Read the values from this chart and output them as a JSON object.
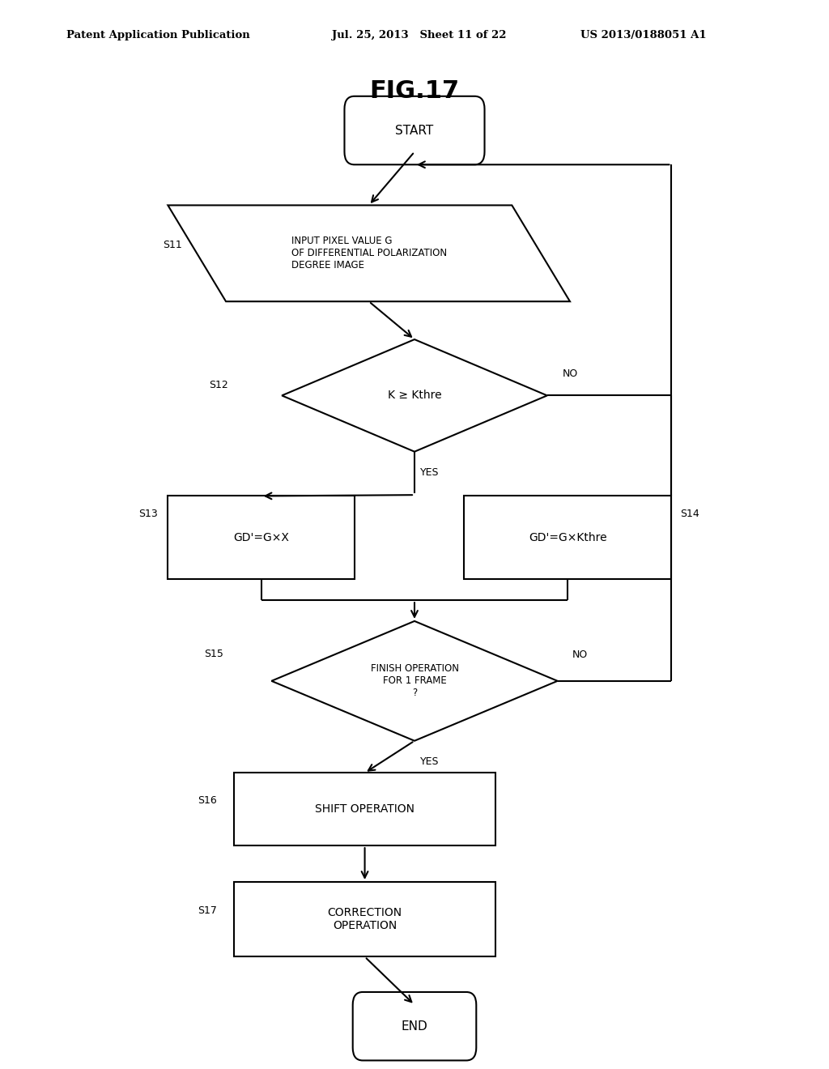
{
  "title": "FIG.17",
  "header_left": "Patent Application Publication",
  "header_center": "Jul. 25, 2013   Sheet 11 of 22",
  "header_right": "US 2013/0188051 A1",
  "bg_color": "#ffffff",
  "line_color": "#000000",
  "start_label": "START",
  "end_label": "END",
  "s11_label": "INPUT PIXEL VALUE G\nOF DIFFERENTIAL POLARIZATION\nDEGREE IMAGE",
  "s12_label": "K ≥ Kthre",
  "s13_label": "GD'=G×X",
  "s14_label": "GD'=G×Kthre",
  "s15_label": "FINISH OPERATION\nFOR 1 FRAME\n?",
  "s16_label": "SHIFT OPERATION",
  "s17_label": "CORRECTION\nOPERATION",
  "yes_label": "YES",
  "no_label": "NO"
}
